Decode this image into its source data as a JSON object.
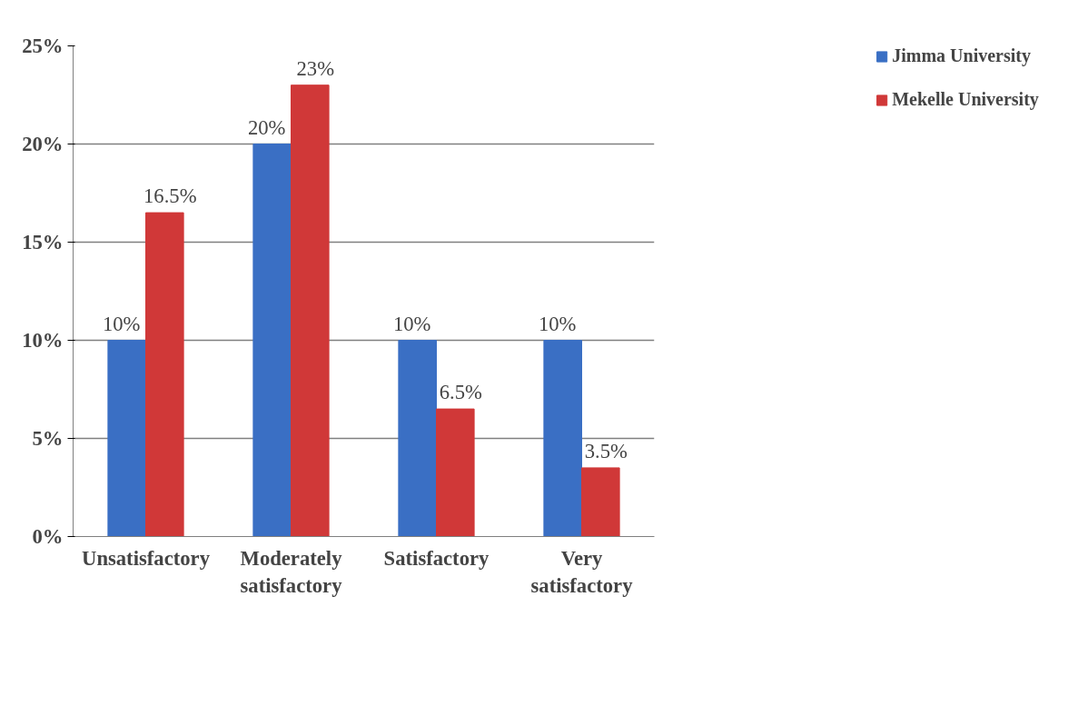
{
  "chart_data": {
    "type": "bar",
    "categories": [
      "Unsatisfactory",
      "Moderately satisfactory",
      "Satisfactory",
      "Very satisfactory"
    ],
    "series": [
      {
        "name": "Jimma University",
        "color": "#3a6fc4",
        "values": [
          10,
          20,
          10,
          10
        ],
        "value_labels": [
          "10%",
          "20%",
          "10%",
          "10%"
        ]
      },
      {
        "name": "Mekelle University",
        "color": "#d03838",
        "values": [
          16.5,
          23,
          6.5,
          3.5
        ],
        "value_labels": [
          "16.5%",
          "23%",
          "6.5%",
          "3.5%"
        ]
      }
    ],
    "ylim": [
      0,
      25
    ],
    "yticks": [
      {
        "value": 0,
        "label": "0%"
      },
      {
        "value": 5,
        "label": "5%"
      },
      {
        "value": 10,
        "label": "10%"
      },
      {
        "value": 15,
        "label": "15%"
      },
      {
        "value": 20,
        "label": "20%"
      },
      {
        "value": 25,
        "label": "25%"
      }
    ],
    "grid": "y",
    "legend": "top right"
  }
}
